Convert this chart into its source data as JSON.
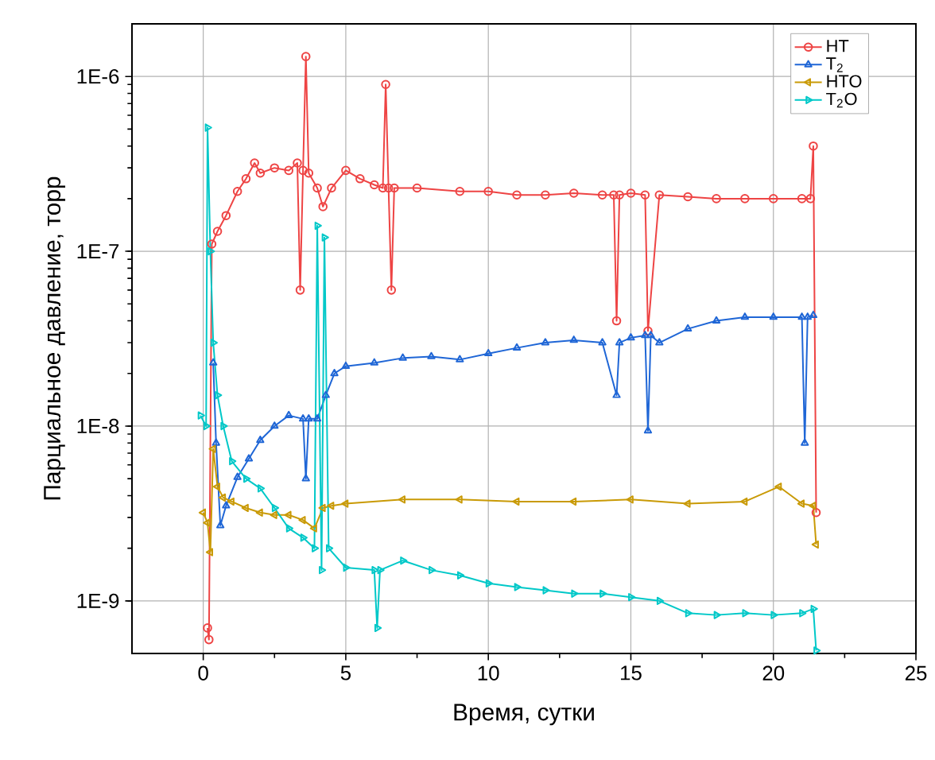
{
  "chart_data": {
    "type": "line",
    "xlabel": "Время, сутки",
    "ylabel": "Парциальное давление, торр",
    "log": "y",
    "grid": true,
    "legend": "top right",
    "line_style": "solid",
    "xlim": [
      -2.5,
      25
    ],
    "xticks": [
      0,
      5,
      10,
      15,
      20,
      25
    ],
    "ylim": [
      5e-10,
      2e-06
    ],
    "yticks": [
      {
        "value": 1e-09,
        "label": "1E-9"
      },
      {
        "value": 1e-08,
        "label": "1E-8"
      },
      {
        "value": 1e-07,
        "label": "1E-7"
      },
      {
        "value": 1e-06,
        "label": "1E-6"
      }
    ],
    "series": [
      {
        "name": "HT",
        "color": "#ee4444",
        "marker": "circle",
        "x": [
          0.15,
          0.2,
          0.3,
          0.5,
          0.8,
          1.2,
          1.5,
          1.8,
          2,
          2.5,
          3,
          3.3,
          3.4,
          3.5,
          3.6,
          3.7,
          4,
          4.2,
          4.5,
          5,
          5.5,
          6,
          6.3,
          6.4,
          6.5,
          6.6,
          6.7,
          7.5,
          9,
          10,
          11,
          12,
          13,
          14,
          14.4,
          14.5,
          14.6,
          15,
          15.5,
          15.6,
          16,
          17,
          18,
          19,
          20,
          21,
          21.3,
          21.4,
          21.5
        ],
        "values": [
          7e-10,
          6e-10,
          1.1e-07,
          1.3e-07,
          1.6e-07,
          2.2e-07,
          2.6e-07,
          3.2e-07,
          2.8e-07,
          3e-07,
          2.9e-07,
          3.2e-07,
          6e-08,
          2.9e-07,
          1.3e-06,
          2.8e-07,
          2.3e-07,
          1.8e-07,
          2.3e-07,
          2.9e-07,
          2.6e-07,
          2.4e-07,
          2.3e-07,
          9e-07,
          2.3e-07,
          6e-08,
          2.3e-07,
          2.3e-07,
          2.2e-07,
          2.2e-07,
          2.1e-07,
          2.1e-07,
          2.15e-07,
          2.1e-07,
          2.1e-07,
          4e-08,
          2.1e-07,
          2.15e-07,
          2.1e-07,
          3.5e-08,
          2.1e-07,
          2.05e-07,
          2e-07,
          2e-07,
          2e-07,
          2e-07,
          2e-07,
          4e-07,
          3.2e-09
        ]
      },
      {
        "name": "T$_{2}$",
        "color": "#1f66d6",
        "marker": "triangle",
        "x": [
          0.35,
          0.45,
          0.6,
          0.8,
          1.2,
          1.6,
          2,
          2.5,
          3,
          3.5,
          3.6,
          3.7,
          4,
          4.3,
          4.6,
          5,
          6,
          7,
          8,
          9,
          10,
          11,
          12,
          13,
          14,
          14.5,
          14.6,
          15,
          15.5,
          15.6,
          15.7,
          16,
          17,
          18,
          19,
          20,
          21,
          21.1,
          21.2,
          21.4
        ],
        "values": [
          2.3e-08,
          8e-09,
          2.7e-09,
          3.5e-09,
          5.1e-09,
          6.5e-09,
          8.3e-09,
          1e-08,
          1.15e-08,
          1.1e-08,
          5e-09,
          1.1e-08,
          1.1e-08,
          1.5e-08,
          2e-08,
          2.2e-08,
          2.3e-08,
          2.45e-08,
          2.5e-08,
          2.4e-08,
          2.6e-08,
          2.8e-08,
          3e-08,
          3.1e-08,
          3e-08,
          1.5e-08,
          3e-08,
          3.2e-08,
          3.3e-08,
          9.4e-09,
          3.3e-08,
          3e-08,
          3.6e-08,
          4e-08,
          4.2e-08,
          4.2e-08,
          4.2e-08,
          8e-09,
          4.2e-08,
          4.3e-08
        ]
      },
      {
        "name": "HTO",
        "color": "#c99a06",
        "marker": "triangle-left",
        "x": [
          0,
          0.15,
          0.25,
          0.35,
          0.5,
          0.7,
          1,
          1.5,
          2,
          2.5,
          3,
          3.5,
          3.9,
          4.2,
          4.5,
          5,
          7,
          9,
          11,
          13,
          15,
          17,
          19,
          20.2,
          21,
          21.4,
          21.5
        ],
        "values": [
          3.2e-09,
          2.8e-09,
          1.9e-09,
          7.4e-09,
          4.5e-09,
          3.9e-09,
          3.7e-09,
          3.4e-09,
          3.2e-09,
          3.1e-09,
          3.1e-09,
          2.9e-09,
          2.6e-09,
          3.4e-09,
          3.5e-09,
          3.6e-09,
          3.8e-09,
          3.8e-09,
          3.7e-09,
          3.7e-09,
          3.8e-09,
          3.6e-09,
          3.7e-09,
          4.5e-09,
          3.6e-09,
          3.5e-09,
          2.1e-09
        ]
      },
      {
        "name": "T$_{2}$O",
        "color": "#00c8c8",
        "marker": "triangle-right",
        "x": [
          -0.1,
          0.1,
          0.15,
          0.25,
          0.35,
          0.5,
          0.7,
          1,
          1.5,
          2,
          2.5,
          3,
          3.5,
          3.9,
          4,
          4.15,
          4.25,
          4.4,
          5,
          6,
          6.1,
          6.2,
          7,
          8,
          9,
          10,
          11,
          12,
          13,
          14,
          15,
          16,
          17,
          18,
          19,
          20,
          21,
          21.4,
          21.5
        ],
        "values": [
          1.15e-08,
          1e-08,
          5.1e-07,
          1e-07,
          3e-08,
          1.5e-08,
          1e-08,
          6.3e-09,
          5e-09,
          4.4e-09,
          3.4e-09,
          2.6e-09,
          2.3e-09,
          2e-09,
          1.4e-07,
          1.5e-09,
          1.2e-07,
          2e-09,
          1.55e-09,
          1.5e-09,
          7e-10,
          1.5e-09,
          1.7e-09,
          1.5e-09,
          1.4e-09,
          1.26e-09,
          1.2e-09,
          1.15e-09,
          1.1e-09,
          1.1e-09,
          1.05e-09,
          1e-09,
          8.5e-10,
          8.3e-10,
          8.5e-10,
          8.3e-10,
          8.5e-10,
          9e-10,
          5.2e-10
        ]
      }
    ]
  }
}
